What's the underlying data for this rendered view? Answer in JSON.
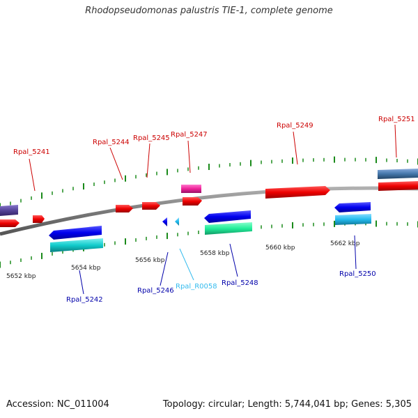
{
  "title": "Rhodopseudomonas palustris TIE-1, complete genome",
  "footer": {
    "accession": "Accession: NC_011004",
    "topology": "Topology: circular; Length: 5,744,041 bp; Genes: 5,305"
  },
  "colors": {
    "backbone": "#808080",
    "tick": "#1a8a1a",
    "label_forward": "#cc0000",
    "label_reverse": "#0000aa",
    "label_rna": "#33bbee"
  },
  "scale_labels": [
    "5652 kbp",
    "5654 kbp",
    "5656 kbp",
    "5658 kbp",
    "5660 kbp",
    "5662 kbp"
  ],
  "genes": [
    {
      "label": "Rpal_5241",
      "strand": "forward"
    },
    {
      "label": "Rpal_5242",
      "strand": "reverse"
    },
    {
      "label": "Rpal_5244",
      "strand": "forward"
    },
    {
      "label": "Rpal_5245",
      "strand": "forward"
    },
    {
      "label": "Rpal_5246",
      "strand": "reverse"
    },
    {
      "label": "Rpal_R0058",
      "strand": "rna"
    },
    {
      "label": "Rpal_5247",
      "strand": "forward"
    },
    {
      "label": "Rpal_5248",
      "strand": "reverse"
    },
    {
      "label": "Rpal_5249",
      "strand": "forward"
    },
    {
      "label": "Rpal_5250",
      "strand": "reverse"
    },
    {
      "label": "Rpal_5251",
      "strand": "forward"
    }
  ]
}
